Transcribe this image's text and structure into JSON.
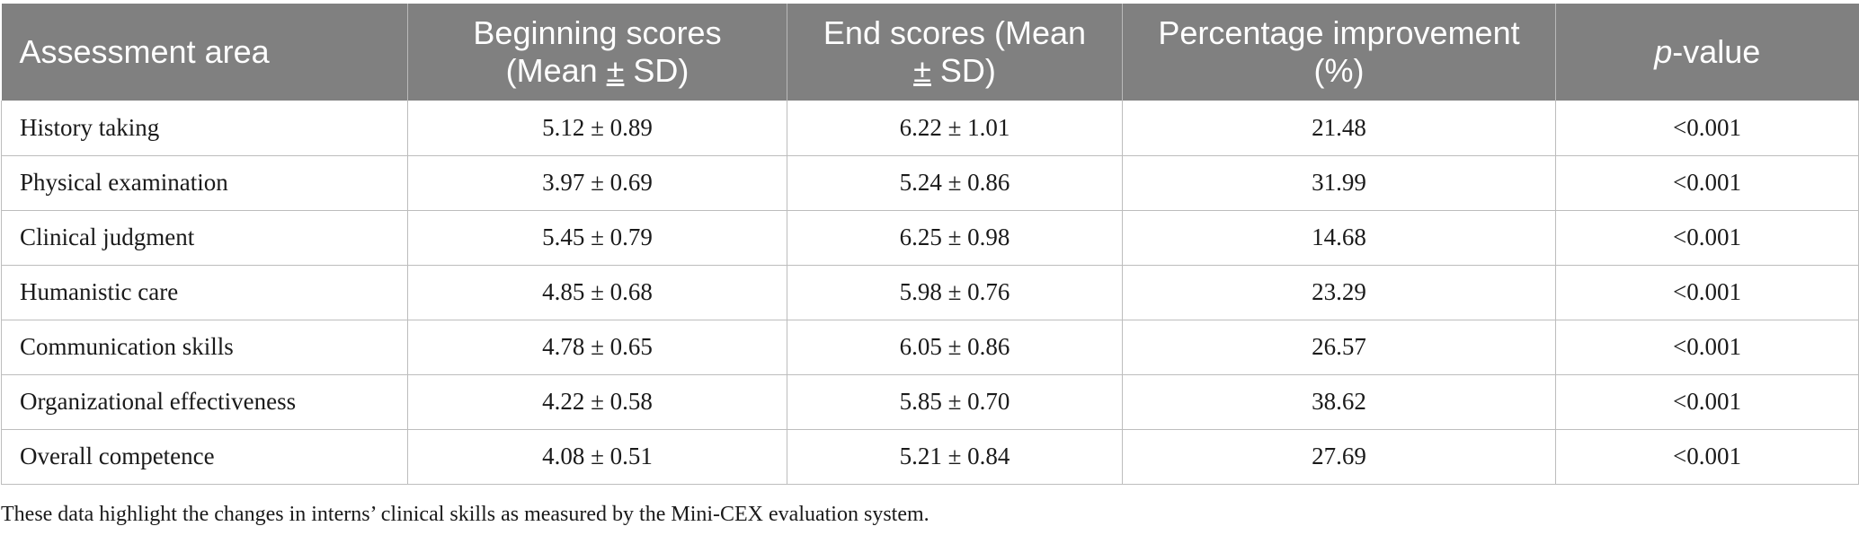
{
  "table": {
    "headers": {
      "assessment_area": "Assessment area",
      "beginning_line1": "Beginning scores",
      "beginning_line2_pre": "(Mean ",
      "beginning_line2_pm": "±",
      "beginning_line2_post": " SD)",
      "end_line1": "End scores (Mean",
      "end_line2_pm": "±",
      "end_line2_post": " SD)",
      "improvement_line1": "Percentage improvement",
      "improvement_line2": "(%)",
      "pvalue_italic": "p",
      "pvalue_rest": "-value"
    },
    "rows": [
      {
        "area": "History taking",
        "beginning": "5.12 ± 0.89",
        "end": "6.22 ± 1.01",
        "improvement": "21.48",
        "p": "<0.001"
      },
      {
        "area": "Physical examination",
        "beginning": "3.97 ± 0.69",
        "end": "5.24 ± 0.86",
        "improvement": "31.99",
        "p": "<0.001"
      },
      {
        "area": "Clinical judgment",
        "beginning": "5.45 ± 0.79",
        "end": "6.25 ± 0.98",
        "improvement": "14.68",
        "p": "<0.001"
      },
      {
        "area": "Humanistic care",
        "beginning": "4.85 ± 0.68",
        "end": "5.98 ± 0.76",
        "improvement": "23.29",
        "p": "<0.001"
      },
      {
        "area": "Communication skills",
        "beginning": "4.78 ± 0.65",
        "end": "6.05 ± 0.86",
        "improvement": "26.57",
        "p": "<0.001"
      },
      {
        "area": "Organizational effectiveness",
        "beginning": "4.22 ± 0.58",
        "end": "5.85 ± 0.70",
        "improvement": "38.62",
        "p": "<0.001"
      },
      {
        "area": "Overall competence",
        "beginning": "4.08 ± 0.51",
        "end": "5.21 ± 0.84",
        "improvement": "27.69",
        "p": "<0.001"
      }
    ]
  },
  "caption": "These data highlight the changes in interns’ clinical skills as measured by the Mini-CEX evaluation system.",
  "colors": {
    "header_background": "#808080",
    "header_text": "#ffffff",
    "grid_lines": "#bdbdbd"
  }
}
